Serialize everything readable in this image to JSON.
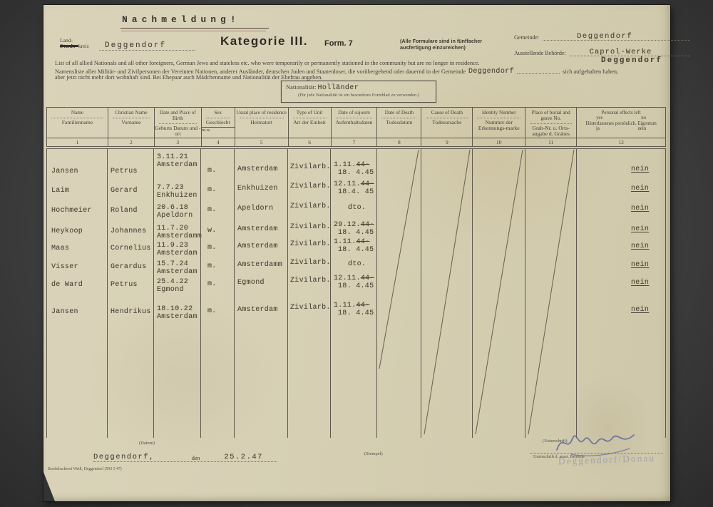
{
  "page_title": "Nachmeldung!",
  "header": {
    "kreis_label_land": "Land-",
    "kreis_label_struck": "Stadt-",
    "kreis_label_rest": "kreis",
    "kreis_value": "Deggendorf",
    "kategorie": "Kategorie III.",
    "form_number": "Form. 7",
    "copies_note_line1": "(Alle Formulare sind in fünffacher",
    "copies_note_line2": "ausfertigung einzureichen)",
    "gemeinde_label": "Gemeinde:",
    "gemeinde_value": "Deggendorf",
    "behoerde_label": "Ausstellende Behörde:",
    "behoerde_value": "Caprol-Werke",
    "behoerde_value2": "Deggendorf",
    "intro_en": "List of all allied Nationals and all other foreigners, German Jews and stateless etc. who were temporarily or permanently stationed in the community but are no longer in residence.",
    "intro_de_1": "Namensliste aller Militär- und Zivilpersonen der Vereinten Nationen, anderer Ausländer, deutschen Juden und Staatenloser, die vorübergehend oder dauernd in der Gemeinde",
    "intro_de_value": "Deggendorf",
    "intro_de_2": "sich aufgehalten haben,",
    "intro_de_3": "aber jetzt nicht mehr dort wohnhaft sind. Bei Ehepaar auch Mädchenname und Nationalität der Ehefrau angeben."
  },
  "nationality_box": {
    "label": "Nationalität:",
    "value": "Holländer",
    "note": "(Für jede Nationalität ist ein besonderes Formblatt zu verwenden.)"
  },
  "table": {
    "columns": [
      {
        "num": "1",
        "en": "Name",
        "de": "Familienname"
      },
      {
        "num": "2",
        "en": "Christian Name",
        "de": "Vorname"
      },
      {
        "num": "3",
        "en": "Date and Place of Birth",
        "de": "Geburts Datum und -ort"
      },
      {
        "num": "4",
        "en": "Sex",
        "de": "Geschlecht",
        "sub_m": "m.",
        "sub_w": "w."
      },
      {
        "num": "5",
        "en": "Usual place of residence",
        "de": "Heimatort"
      },
      {
        "num": "6",
        "en": "Type of Unit",
        "de": "Art der Einheit"
      },
      {
        "num": "7",
        "en": "Date of sojourn",
        "de": "Aufenthaltsdaten"
      },
      {
        "num": "8",
        "en": "Date of Death",
        "de": "Todesdatum"
      },
      {
        "num": "9",
        "en": "Cause of Death",
        "de": "Todesursache"
      },
      {
        "num": "10",
        "en": "Identity Number",
        "de": "Nummer der Erkennungs-marke"
      },
      {
        "num": "11",
        "en": "Place of burial and grave No.",
        "de": "Grab-Nr. u. Orts-angabe d. Grabes"
      },
      {
        "num": "12",
        "en": "Personal effects left",
        "yes_en": "yes",
        "no_en": "no",
        "de": "Hinterlassenes persönlich. Eigentum",
        "yes_de": "ja",
        "no_de": "nein"
      }
    ],
    "rows": [
      {
        "name": "Jansen",
        "vorname": "Petrus",
        "birth_date": "3.11.21",
        "birth_place": "Amsterdam",
        "sex": "m.",
        "residence": "Amsterdam",
        "unit": "Zivilarb.",
        "from_a": "1.11.",
        "from_b": "44-",
        "to": "18. 4.45",
        "effects": "nein"
      },
      {
        "name": "Laim",
        "vorname": "Gerard",
        "birth_date": "7.7.23",
        "birth_place": "Enkhuizen",
        "sex": "m.",
        "residence": "Enkhuizen",
        "unit": "Zivilarb.",
        "from_a": "12.11.",
        "from_b": "44-",
        "to": "18.4. 45",
        "effects": "nein"
      },
      {
        "name": "Hochmeier",
        "vorname": "Roland",
        "birth_date": "20.6.18",
        "birth_place": "Apeldorn",
        "sex": "m.",
        "residence": "Apeldorn",
        "unit": "Zivilarb.",
        "dto": "dto.",
        "effects": "nein"
      },
      {
        "name": "Heykoop",
        "vorname": "Johannes",
        "birth_date": "11.7.20",
        "birth_place": "Amsterdamm",
        "sex": "w.",
        "residence": "Amsterdam",
        "unit": "Zivilarb.",
        "from_a": "29.12.",
        "from_b": "44-",
        "to": "18. 4.45",
        "effects": "nein"
      },
      {
        "name": "Maas",
        "vorname": "Cornelius",
        "birth_date": "11.9.23",
        "birth_place": "Amsterdam",
        "sex": "m.",
        "residence": "Amsterdam",
        "unit": "Zivilarb.",
        "from_a": "1.11.",
        "from_b": "44-",
        "to": "18. 4.45",
        "effects": "nein"
      },
      {
        "name": "Visser",
        "vorname": "Gerardus",
        "birth_date": "15.7.24",
        "birth_place": "Amsterdam",
        "sex": "m.",
        "residence": "Amsterdamm",
        "unit": "Zivilarb.",
        "dto": "dto.",
        "effects": "nein"
      },
      {
        "name": "de Ward",
        "vorname": "Petrus",
        "birth_date": "25.4.22",
        "birth_place": "Egmond",
        "sex": "m.",
        "residence": "Egmond",
        "unit": "Zivilarb.",
        "from_a": "12.11.",
        "from_b": "44-",
        "to": "18. 4.45",
        "effects": "nein"
      },
      {
        "name": "Jansen",
        "vorname": "Hendrikus",
        "birth_date": "18.10.22",
        "birth_place": "Amsterdam",
        "sex": "m.",
        "residence": "Amsterdam",
        "unit": "Zivilarb.",
        "from_a": "1.11.",
        "from_b": "44-",
        "to": "18. 4.45",
        "effects": "nein"
      }
    ]
  },
  "footer": {
    "datum_label": "(Datum)",
    "place_value": "Deggendorf,",
    "den_label": "den",
    "date_value": "25.2.47",
    "stempel_label": "(Stempel)",
    "unterschrift_label": "(Unterschrift)",
    "unterschrift_sub_label": "Unterschrift d. ausst. Behörde",
    "stamp_text": "Deggendorf/Donau",
    "printer_mark": "Buchdruckerei Weiß, Deggendorf (593 5 47)"
  }
}
